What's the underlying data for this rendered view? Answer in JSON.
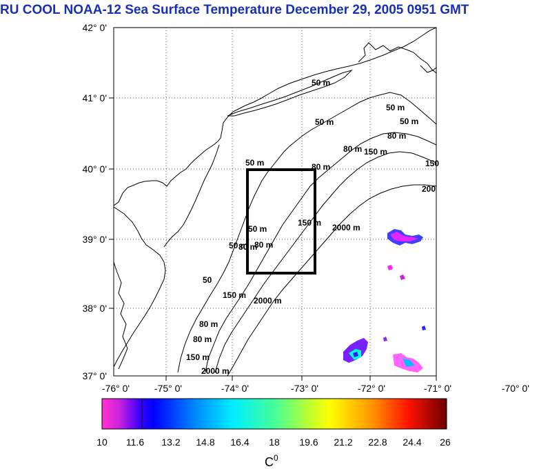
{
  "title": "RU COOL  NOAA-12 Sea Surface Temperature December 29, 2005 0951 GMT",
  "map": {
    "lat_labels": [
      "42° 0'",
      "41° 0'",
      "40° 0'",
      "39° 0'",
      "38° 0'",
      "37° 0'"
    ],
    "lon_labels": [
      "-76° 0'",
      "-75° 0'",
      "-74° 0'",
      "-73° 0'",
      "-72° 0'",
      "-71° 0'",
      "-70° 0'"
    ],
    "contour_labels": {
      "c1": "50 m",
      "c2": "50 m",
      "c3": "50 m",
      "c4": "80 m",
      "c5": "80 m",
      "c6": "80 m",
      "c7": "150",
      "c8": "200",
      "c9": "50 m",
      "c10": "80 m",
      "c11": "150 m",
      "c12": "2000 m",
      "c13": "50 m",
      "c14": "80 m",
      "c15": "50",
      "c16": "150 m",
      "c17": "2000 m",
      "c18": "80 m",
      "c19": "150 m",
      "c20": "2000 m",
      "c21": "50 m",
      "c22": "80 m",
      "c23": "150 m",
      "c24": "50 m"
    },
    "colors": {
      "coast": "#000000",
      "box": "#000000",
      "grid": "#555555"
    }
  },
  "colorbar": {
    "tick_labels": [
      "10",
      "11.6",
      "13.2",
      "14.8",
      "16.4",
      "18",
      "19.6",
      "21.2",
      "22.8",
      "24.4",
      "26"
    ],
    "unit_label": "C",
    "unit_superscript": "0",
    "colors": [
      "#ff33cc",
      "#1010ff",
      "#00c8ff",
      "#00ff88",
      "#ffff00",
      "#ff8800",
      "#ff0000",
      "#7a0000"
    ]
  }
}
